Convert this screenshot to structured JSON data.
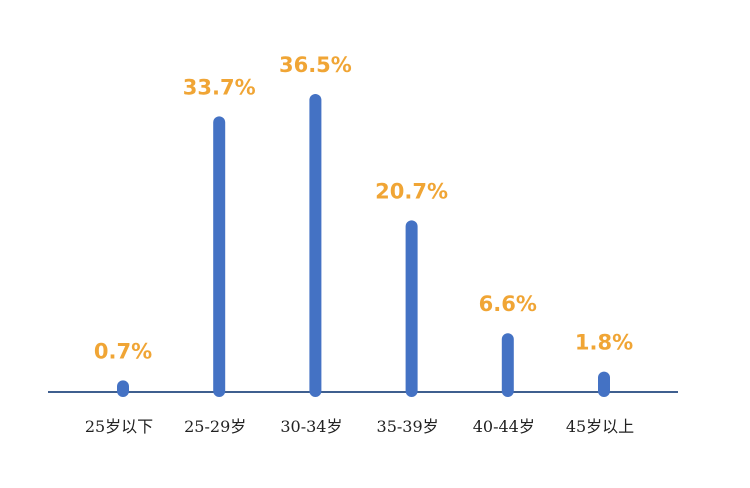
{
  "chart_data": {
    "type": "bar",
    "categories": [
      "25岁以下",
      "25-29岁",
      "30-34岁",
      "35-39岁",
      "40-44岁",
      "45岁以上"
    ],
    "values": [
      0.7,
      33.7,
      36.5,
      20.7,
      6.6,
      1.8
    ],
    "value_labels": [
      "0.7%",
      "33.7%",
      "36.5%",
      "20.7%",
      "6.6%",
      "1.8%"
    ],
    "color": "#4472c4",
    "label_color": "#f0a535"
  }
}
